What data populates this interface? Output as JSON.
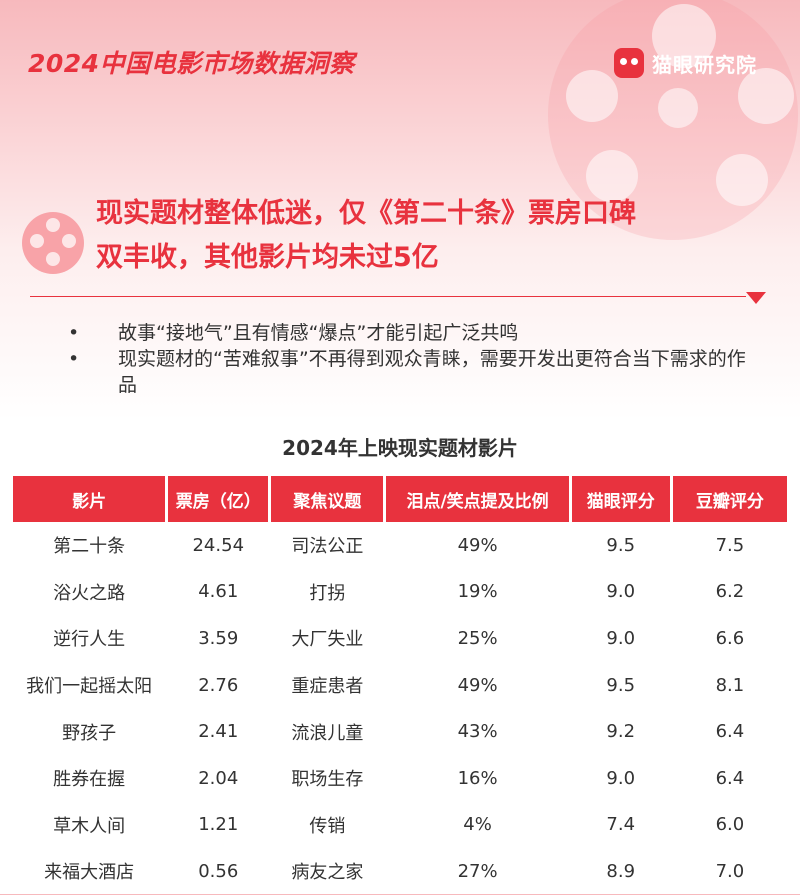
{
  "header": {
    "title": "2024中国电影市场数据洞察",
    "brand": "猫眼研究院",
    "brand_icon": "cat-eye-logo-icon"
  },
  "headline": {
    "line1": "现实题材整体低迷，仅《第二十条》票房口碑",
    "line2": "双丰收，其他影片均未过5亿"
  },
  "bullets": [
    "故事“接地气”且有情感“爆点”才能引起广泛共鸣",
    "现实题材的“苦难叙事”不再得到观众青睐，需要开发出更符合当下需求的作品"
  ],
  "table": {
    "title": "2024年上映现实题材影片",
    "columns": [
      "影片",
      "票房（亿）",
      "聚焦议题",
      "泪点/笑点提及比例",
      "猫眼评分",
      "豆瓣评分"
    ],
    "rows": [
      [
        "第二十条",
        "24.54",
        "司法公正",
        "49%",
        "9.5",
        "7.5"
      ],
      [
        "浴火之路",
        "4.61",
        "打拐",
        "19%",
        "9.0",
        "6.2"
      ],
      [
        "逆行人生",
        "3.59",
        "大厂失业",
        "25%",
        "9.0",
        "6.6"
      ],
      [
        "我们一起摇太阳",
        "2.76",
        "重症患者",
        "49%",
        "9.5",
        "8.1"
      ],
      [
        "野孩子",
        "2.41",
        "流浪儿童",
        "43%",
        "9.2",
        "6.4"
      ],
      [
        "胜券在握",
        "2.04",
        "职场生存",
        "16%",
        "9.0",
        "6.4"
      ],
      [
        "草木人间",
        "1.21",
        "传销",
        "4%",
        "7.4",
        "6.0"
      ],
      [
        "来福大酒店",
        "0.56",
        "病友之家",
        "27%",
        "8.9",
        "7.0"
      ]
    ]
  },
  "colors": {
    "accent": "#e8323e",
    "header_bg": "#f7b9bd"
  }
}
